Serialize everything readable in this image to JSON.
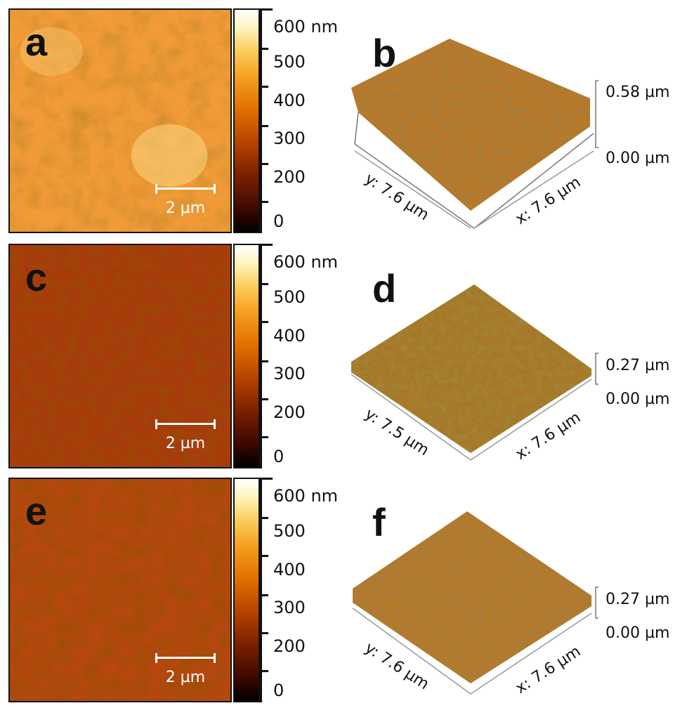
{
  "colorbar": {
    "unit": "nm",
    "ticks": [
      "600",
      "500",
      "400",
      "300",
      "200",
      "0"
    ]
  },
  "scalebar": {
    "label": "2 µm"
  },
  "panels": [
    {
      "map_letter": "a",
      "surface_letter": "b",
      "z_max": "0.58 µm",
      "z_min": "0.00 µm",
      "y_extent": "y: 7.6 µm",
      "x_extent": "x: 7.6 µm",
      "map_tint": "#f19a38",
      "surface_tint": "#b87a2a"
    },
    {
      "map_letter": "c",
      "surface_letter": "d",
      "z_max": "0.27 µm",
      "z_min": "0.00 µm",
      "y_extent": "y: 7.5 µm",
      "x_extent": "x: 7.6 µm",
      "map_tint": "#a83a0c",
      "surface_tint": "#a67828"
    },
    {
      "map_letter": "e",
      "surface_letter": "f",
      "z_max": "0.27 µm",
      "z_min": "0.00 µm",
      "y_extent": "y: 7.6 µm",
      "x_extent": "x: 7.6 µm",
      "map_tint": "#b5470f",
      "surface_tint": "#b27a2c"
    }
  ]
}
